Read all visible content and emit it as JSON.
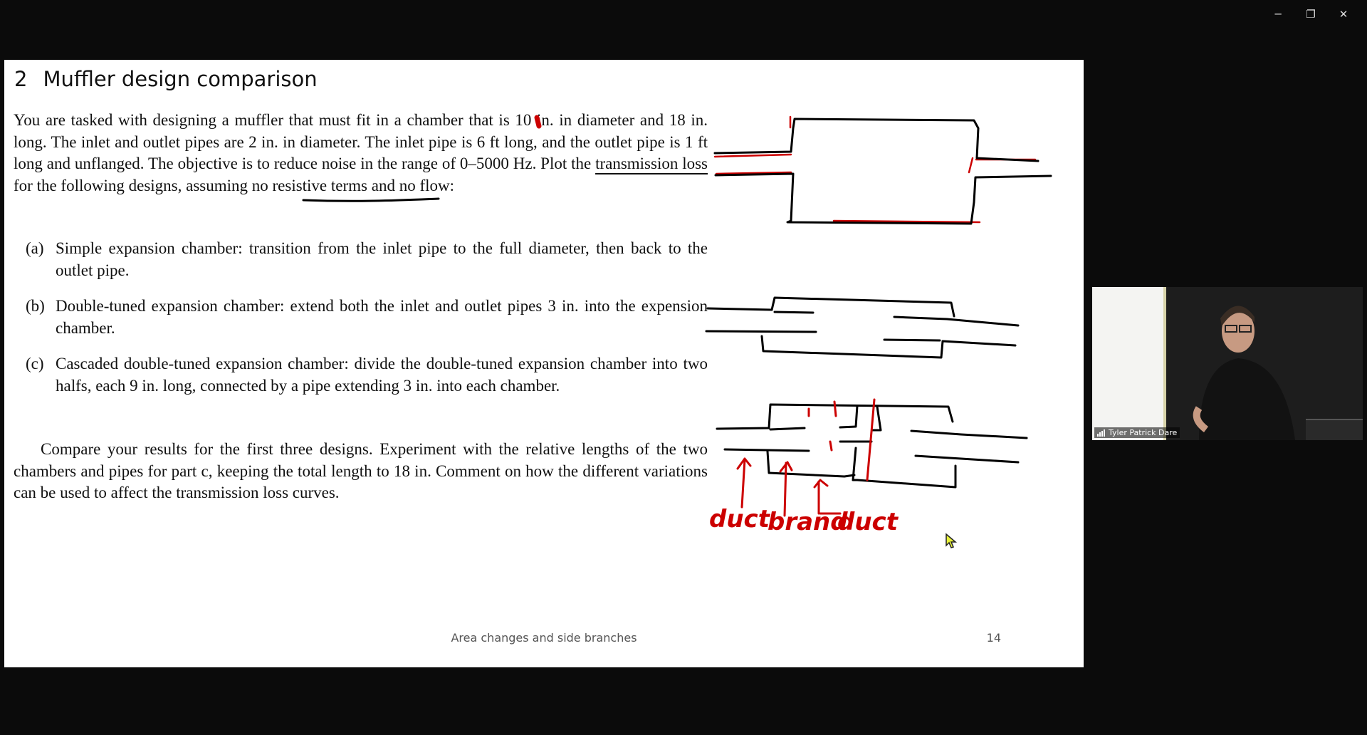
{
  "window": {
    "minimize_label": "─",
    "restore_label": "❐",
    "close_label": "✕"
  },
  "slide": {
    "section_number": "2",
    "title": "Muffler design comparison",
    "intro_part1": "You are tasked with designing a muffler that must fit in a chamber that is 10 in. in diameter and 18 in. long. The inlet and outlet pipes are 2 in. in diameter. The inlet pipe is 6 ft long, and the outlet pipe is 1 ft long and unflanged. The objective is to reduce noise in the range of 0–5000 Hz. Plot the ",
    "intro_underlined": "transmission loss",
    "intro_part2": " for the following designs, assuming no resistive terms and no flow:",
    "items": [
      {
        "label": "(a)",
        "text": "Simple expansion chamber: transition from the inlet pipe to the full diameter, then back to the outlet pipe."
      },
      {
        "label": "(b)",
        "text": "Double-tuned expansion chamber: extend both the inlet and outlet pipes 3 in. into the expension chamber."
      },
      {
        "label": "(c)",
        "text": "Cascaded double-tuned expansion chamber: divide the double-tuned expansion chamber into two halfs, each 9 in. long, connected by a pipe extending 3 in. into each chamber."
      }
    ],
    "outro": "Compare your results for the first three designs. Experiment with the relative lengths of the two chambers and pipes for part c, keeping the total length to 18 in. Comment on how the different variations can be used to affect the transmission loss curves.",
    "footer_title": "Area changes and side branches",
    "page_number": "14"
  },
  "annotations": {
    "words": [
      "duct",
      "brand",
      "duct"
    ],
    "ink_color": "#cc0000",
    "pen_color": "#000000"
  },
  "video": {
    "participant_name": "Tyler Patrick Dare",
    "signal_icon": "signal-bars-icon"
  }
}
